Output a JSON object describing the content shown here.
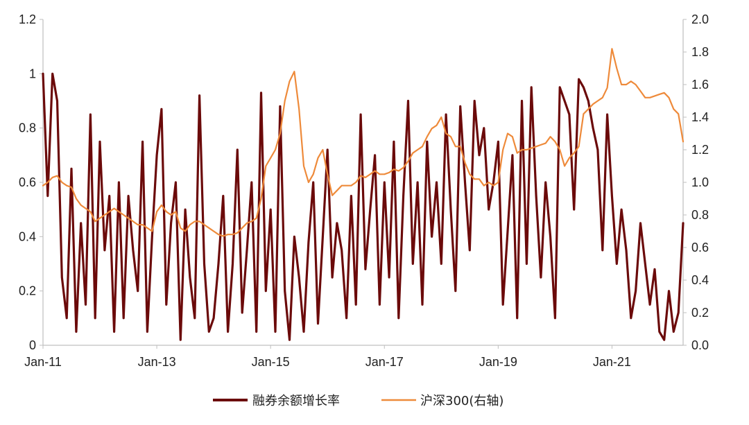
{
  "colors": {
    "series_1": "#6b0a0a",
    "series_2": "#ee8a3a",
    "axis": "#bfbfbf",
    "text": "#222222",
    "background": "#ffffff"
  },
  "chart_data": {
    "type": "line",
    "title": "",
    "xlabel": "",
    "ylabel": "",
    "grid": false,
    "legend_placement": "bottom",
    "x_range": [
      "2011-01",
      "2022-04"
    ],
    "x_ticks": [
      "Jan-11",
      "Jan-13",
      "Jan-15",
      "Jan-17",
      "Jan-19",
      "Jan-21"
    ],
    "x_tick_dates": [
      "2011-01",
      "2013-01",
      "2015-01",
      "2017-01",
      "2019-01",
      "2021-01"
    ],
    "y_left": {
      "range": [
        0,
        1.2
      ],
      "ticks": [
        "0",
        "0.2",
        "0.4",
        "0.6",
        "0.8",
        "1",
        "1.2"
      ],
      "tick_values": [
        0,
        0.2,
        0.4,
        0.6,
        0.8,
        1.0,
        1.2
      ]
    },
    "y_right": {
      "range": [
        0,
        2.0
      ],
      "ticks": [
        "0.0",
        "0.2",
        "0.4",
        "0.6",
        "0.8",
        "1.0",
        "1.2",
        "1.4",
        "1.6",
        "1.8",
        "2.0"
      ],
      "tick_values": [
        0,
        0.2,
        0.4,
        0.6,
        0.8,
        1.0,
        1.2,
        1.4,
        1.6,
        1.8,
        2.0
      ]
    },
    "series": [
      {
        "name": "融券余额增长率",
        "axis": "left",
        "x": [
          "2011-01",
          "2011-02",
          "2011-03",
          "2011-04",
          "2011-05",
          "2011-06",
          "2011-07",
          "2011-08",
          "2011-09",
          "2011-10",
          "2011-11",
          "2011-12",
          "2012-01",
          "2012-02",
          "2012-03",
          "2012-04",
          "2012-05",
          "2012-06",
          "2012-07",
          "2012-08",
          "2012-09",
          "2012-10",
          "2012-11",
          "2012-12",
          "2013-01",
          "2013-02",
          "2013-03",
          "2013-04",
          "2013-05",
          "2013-06",
          "2013-07",
          "2013-08",
          "2013-09",
          "2013-10",
          "2013-11",
          "2013-12",
          "2014-01",
          "2014-02",
          "2014-03",
          "2014-04",
          "2014-05",
          "2014-06",
          "2014-07",
          "2014-08",
          "2014-09",
          "2014-10",
          "2014-11",
          "2014-12",
          "2015-01",
          "2015-02",
          "2015-03",
          "2015-04",
          "2015-05",
          "2015-06",
          "2015-07",
          "2015-08",
          "2015-09",
          "2015-10",
          "2015-11",
          "2015-12",
          "2016-01",
          "2016-02",
          "2016-03",
          "2016-04",
          "2016-05",
          "2016-06",
          "2016-07",
          "2016-08",
          "2016-09",
          "2016-10",
          "2016-11",
          "2016-12",
          "2017-01",
          "2017-02",
          "2017-03",
          "2017-04",
          "2017-05",
          "2017-06",
          "2017-07",
          "2017-08",
          "2017-09",
          "2017-10",
          "2017-11",
          "2017-12",
          "2018-01",
          "2018-02",
          "2018-03",
          "2018-04",
          "2018-05",
          "2018-06",
          "2018-07",
          "2018-08",
          "2018-09",
          "2018-10",
          "2018-11",
          "2018-12",
          "2019-01",
          "2019-02",
          "2019-03",
          "2019-04",
          "2019-05",
          "2019-06",
          "2019-07",
          "2019-08",
          "2019-09",
          "2019-10",
          "2019-11",
          "2019-12",
          "2020-01",
          "2020-02",
          "2020-03",
          "2020-04",
          "2020-05",
          "2020-06",
          "2020-07",
          "2020-08",
          "2020-09",
          "2020-10",
          "2020-11",
          "2020-12",
          "2021-01",
          "2021-02",
          "2021-03",
          "2021-04",
          "2021-05",
          "2021-06",
          "2021-07",
          "2021-08",
          "2021-09",
          "2021-10",
          "2021-11",
          "2021-12",
          "2022-01",
          "2022-02",
          "2022-03",
          "2022-04"
        ],
        "values": [
          1.0,
          0.55,
          1.0,
          0.9,
          0.25,
          0.1,
          0.65,
          0.05,
          0.45,
          0.15,
          0.85,
          0.1,
          0.75,
          0.35,
          0.55,
          0.05,
          0.6,
          0.1,
          0.55,
          0.35,
          0.2,
          0.75,
          0.05,
          0.4,
          0.7,
          0.87,
          0.15,
          0.45,
          0.6,
          0.02,
          0.5,
          0.25,
          0.1,
          0.92,
          0.3,
          0.05,
          0.1,
          0.3,
          0.55,
          0.05,
          0.3,
          0.72,
          0.12,
          0.35,
          0.6,
          0.05,
          0.93,
          0.2,
          0.5,
          0.05,
          0.88,
          0.2,
          0.02,
          0.4,
          0.25,
          0.05,
          0.38,
          0.6,
          0.08,
          0.4,
          0.72,
          0.25,
          0.45,
          0.35,
          0.1,
          0.55,
          0.15,
          0.85,
          0.28,
          0.5,
          0.7,
          0.15,
          0.6,
          0.25,
          0.75,
          0.1,
          0.55,
          0.9,
          0.3,
          0.6,
          0.15,
          0.75,
          0.4,
          0.6,
          0.3,
          0.85,
          0.5,
          0.2,
          0.88,
          0.6,
          0.35,
          0.9,
          0.7,
          0.8,
          0.5,
          0.6,
          0.75,
          0.15,
          0.42,
          0.7,
          0.1,
          0.9,
          0.3,
          0.95,
          0.55,
          0.25,
          0.6,
          0.4,
          0.1,
          0.95,
          0.9,
          0.85,
          0.5,
          0.98,
          0.95,
          0.9,
          0.8,
          0.72,
          0.35,
          0.85,
          0.55,
          0.3,
          0.5,
          0.35,
          0.1,
          0.2,
          0.45,
          0.3,
          0.15,
          0.28,
          0.05,
          0.02,
          0.2,
          0.05,
          0.12,
          0.45
        ]
      },
      {
        "name": "沪深300(右轴)",
        "axis": "right",
        "x": [
          "2011-01",
          "2011-02",
          "2011-03",
          "2011-04",
          "2011-05",
          "2011-06",
          "2011-07",
          "2011-08",
          "2011-09",
          "2011-10",
          "2011-11",
          "2011-12",
          "2012-01",
          "2012-02",
          "2012-03",
          "2012-04",
          "2012-05",
          "2012-06",
          "2012-07",
          "2012-08",
          "2012-09",
          "2012-10",
          "2012-11",
          "2012-12",
          "2013-01",
          "2013-02",
          "2013-03",
          "2013-04",
          "2013-05",
          "2013-06",
          "2013-07",
          "2013-08",
          "2013-09",
          "2013-10",
          "2013-11",
          "2013-12",
          "2014-01",
          "2014-02",
          "2014-03",
          "2014-04",
          "2014-05",
          "2014-06",
          "2014-07",
          "2014-08",
          "2014-09",
          "2014-10",
          "2014-11",
          "2014-12",
          "2015-01",
          "2015-02",
          "2015-03",
          "2015-04",
          "2015-05",
          "2015-06",
          "2015-07",
          "2015-08",
          "2015-09",
          "2015-10",
          "2015-11",
          "2015-12",
          "2016-01",
          "2016-02",
          "2016-03",
          "2016-04",
          "2016-05",
          "2016-06",
          "2016-07",
          "2016-08",
          "2016-09",
          "2016-10",
          "2016-11",
          "2016-12",
          "2017-01",
          "2017-02",
          "2017-03",
          "2017-04",
          "2017-05",
          "2017-06",
          "2017-07",
          "2017-08",
          "2017-09",
          "2017-10",
          "2017-11",
          "2017-12",
          "2018-01",
          "2018-02",
          "2018-03",
          "2018-04",
          "2018-05",
          "2018-06",
          "2018-07",
          "2018-08",
          "2018-09",
          "2018-10",
          "2018-11",
          "2018-12",
          "2019-01",
          "2019-02",
          "2019-03",
          "2019-04",
          "2019-05",
          "2019-06",
          "2019-07",
          "2019-08",
          "2019-09",
          "2019-10",
          "2019-11",
          "2019-12",
          "2020-01",
          "2020-02",
          "2020-03",
          "2020-04",
          "2020-05",
          "2020-06",
          "2020-07",
          "2020-08",
          "2020-09",
          "2020-10",
          "2020-11",
          "2020-12",
          "2021-01",
          "2021-02",
          "2021-03",
          "2021-04",
          "2021-05",
          "2021-06",
          "2021-07",
          "2021-08",
          "2021-09",
          "2021-10",
          "2021-11",
          "2021-12",
          "2022-01",
          "2022-02",
          "2022-03",
          "2022-04"
        ],
        "values": [
          0.98,
          1.0,
          1.03,
          1.04,
          1.0,
          0.98,
          0.97,
          0.9,
          0.86,
          0.84,
          0.82,
          0.76,
          0.78,
          0.8,
          0.82,
          0.84,
          0.82,
          0.8,
          0.78,
          0.76,
          0.74,
          0.74,
          0.72,
          0.7,
          0.82,
          0.86,
          0.82,
          0.8,
          0.82,
          0.72,
          0.7,
          0.74,
          0.76,
          0.76,
          0.74,
          0.72,
          0.7,
          0.68,
          0.67,
          0.68,
          0.68,
          0.69,
          0.72,
          0.75,
          0.76,
          0.78,
          0.9,
          1.1,
          1.15,
          1.2,
          1.3,
          1.5,
          1.62,
          1.68,
          1.45,
          1.1,
          1.0,
          1.05,
          1.15,
          1.2,
          1.05,
          0.92,
          0.95,
          0.98,
          0.98,
          0.98,
          1.0,
          1.04,
          1.03,
          1.05,
          1.07,
          1.05,
          1.05,
          1.06,
          1.08,
          1.07,
          1.09,
          1.13,
          1.18,
          1.2,
          1.22,
          1.28,
          1.33,
          1.35,
          1.4,
          1.3,
          1.28,
          1.22,
          1.22,
          1.12,
          1.05,
          1.02,
          1.02,
          0.98,
          1.0,
          0.98,
          1.0,
          1.2,
          1.3,
          1.28,
          1.18,
          1.2,
          1.2,
          1.21,
          1.22,
          1.23,
          1.24,
          1.28,
          1.25,
          1.2,
          1.1,
          1.15,
          1.18,
          1.22,
          1.42,
          1.45,
          1.48,
          1.5,
          1.52,
          1.58,
          1.82,
          1.7,
          1.6,
          1.6,
          1.62,
          1.6,
          1.56,
          1.52,
          1.52,
          1.53,
          1.54,
          1.55,
          1.52,
          1.45,
          1.42,
          1.25
        ]
      }
    ]
  }
}
